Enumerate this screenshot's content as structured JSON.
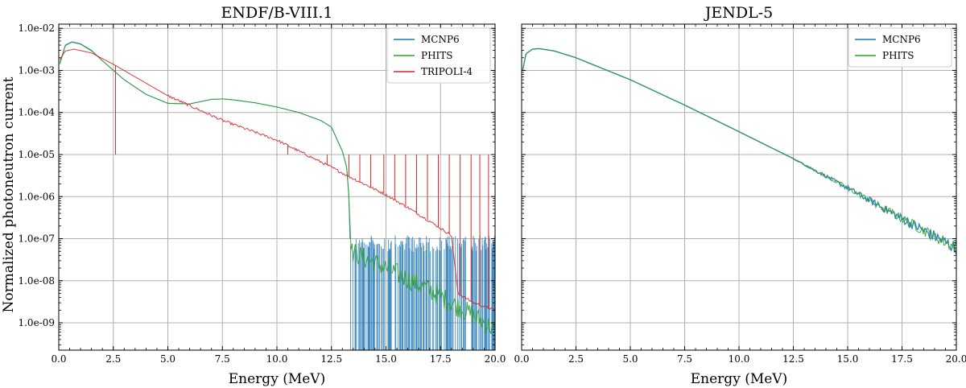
{
  "colors": {
    "mcnp6": "#1f77b4",
    "phits": "#2ca02c",
    "tripoli": "#d62728",
    "grid": "#b0b0b0"
  },
  "ylabel": "Normalized photoneutron current",
  "chart_data": [
    {
      "type": "line",
      "title": "ENDF/B-VIII.1",
      "xlabel": "Energy (MeV)",
      "ylabel": "Normalized photoneutron current",
      "xlim": [
        0,
        20
      ],
      "ylim_log10": [
        -9.65,
        -1.9
      ],
      "yscale": "log",
      "xticks": [
        "0.0",
        "2.5",
        "5.0",
        "7.5",
        "10.0",
        "12.5",
        "15.0",
        "17.5",
        "20.0"
      ],
      "yticks": [
        "1.0e-02",
        "1.0e-03",
        "1.0e-04",
        "1.0e-05",
        "1.0e-06",
        "1.0e-07",
        "1.0e-08",
        "1.0e-09"
      ],
      "legend": [
        "MCNP6",
        "PHITS",
        "TRIPOLI-4"
      ],
      "legend_position": "top-right",
      "grid": true,
      "series": [
        {
          "name": "MCNP6",
          "x": [
            0.05,
            0.3,
            0.6,
            1.0,
            1.5,
            2.0,
            3.0,
            4.0,
            5.0,
            6.0,
            7.0,
            7.5,
            8.0,
            9.0,
            10.0,
            11.0,
            12.0,
            12.5,
            13.0,
            13.2,
            13.3,
            13.35
          ],
          "y": [
            0.0015,
            0.004,
            0.0048,
            0.0043,
            0.003,
            0.0017,
            0.0006,
            0.00027,
            0.000165,
            0.00016,
            0.000205,
            0.00021,
            0.0002,
            0.00017,
            0.000135,
            0.0001,
            6.5e-05,
            4.5e-05,
            1.2e-05,
            5e-06,
            1e-06,
            1e-07
          ],
          "noise_range": [
            13.35,
            20.0
          ],
          "noise_level_max": 1.2e-07
        },
        {
          "name": "PHITS",
          "x": [
            0.05,
            0.3,
            0.6,
            1.0,
            1.5,
            2.0,
            3.0,
            4.0,
            5.0,
            6.0,
            7.0,
            7.5,
            8.0,
            9.0,
            10.0,
            11.0,
            12.0,
            12.5,
            13.0,
            13.2,
            13.3,
            13.4,
            14.0,
            15.0,
            16.0,
            17.0,
            18.0,
            19.0,
            20.0
          ],
          "y": [
            0.0014,
            0.0039,
            0.0047,
            0.0042,
            0.0029,
            0.0017,
            0.0006,
            0.00027,
            0.000165,
            0.00016,
            0.000205,
            0.00021,
            0.0002,
            0.00017,
            0.000135,
            0.0001,
            6.5e-05,
            4.5e-05,
            1.2e-05,
            5e-06,
            1e-06,
            5e-08,
            3.5e-08,
            2e-08,
            1.1e-08,
            6e-09,
            3e-09,
            1.5e-09,
            7e-10
          ]
        },
        {
          "name": "TRIPOLI-4",
          "x": [
            0.05,
            0.3,
            0.7,
            1.5,
            2.5,
            5.0,
            7.5,
            10.0,
            12.5,
            13.3,
            14.0,
            15.0,
            16.0,
            17.0,
            18.0,
            18.3,
            19.0,
            20.0
          ],
          "y": [
            0.0018,
            0.0029,
            0.0032,
            0.0026,
            0.0014,
            0.00025,
            6.5e-05,
            2.2e-05,
            5e-06,
            3e-06,
            2e-06,
            1.1e-06,
            5.5e-07,
            2.6e-07,
            1.2e-07,
            5e-09,
            3e-09,
            2e-09
          ],
          "spikes_x": [
            2.6,
            10.5,
            12.3,
            13.3,
            13.8,
            14.3,
            14.9,
            15.4,
            15.9,
            16.4,
            16.9,
            17.4,
            17.9,
            18.4,
            18.9,
            19.3,
            19.7
          ],
          "spike_level": 1e-05
        }
      ]
    },
    {
      "type": "line",
      "title": "JENDL-5",
      "xlabel": "Energy (MeV)",
      "xlim": [
        0,
        20
      ],
      "ylim_log10": [
        -9.65,
        -1.9
      ],
      "yscale": "log",
      "xticks": [
        "0.0",
        "2.5",
        "5.0",
        "7.5",
        "10.0",
        "12.5",
        "15.0",
        "17.5",
        "20.0"
      ],
      "legend": [
        "MCNP6",
        "PHITS"
      ],
      "legend_position": "top-right",
      "grid": true,
      "series": [
        {
          "name": "MCNP6",
          "x": [
            0.05,
            0.2,
            0.5,
            0.8,
            1.5,
            2.5,
            5.0,
            7.5,
            10.0,
            12.5,
            15.0,
            17.5,
            20.0
          ],
          "y": [
            0.001,
            0.0025,
            0.0032,
            0.0033,
            0.0029,
            0.002,
            0.0006,
            0.00015,
            3.5e-05,
            8e-06,
            1.6e-06,
            3e-07,
            6e-08
          ]
        },
        {
          "name": "PHITS",
          "x": [
            0.05,
            0.2,
            0.5,
            0.8,
            1.5,
            2.5,
            5.0,
            7.5,
            10.0,
            12.5,
            15.0,
            17.5,
            20.0
          ],
          "y": [
            0.001,
            0.0025,
            0.0032,
            0.0033,
            0.0029,
            0.002,
            0.0006,
            0.00015,
            3.5e-05,
            8e-06,
            1.6e-06,
            3e-07,
            6e-08
          ]
        }
      ]
    }
  ]
}
